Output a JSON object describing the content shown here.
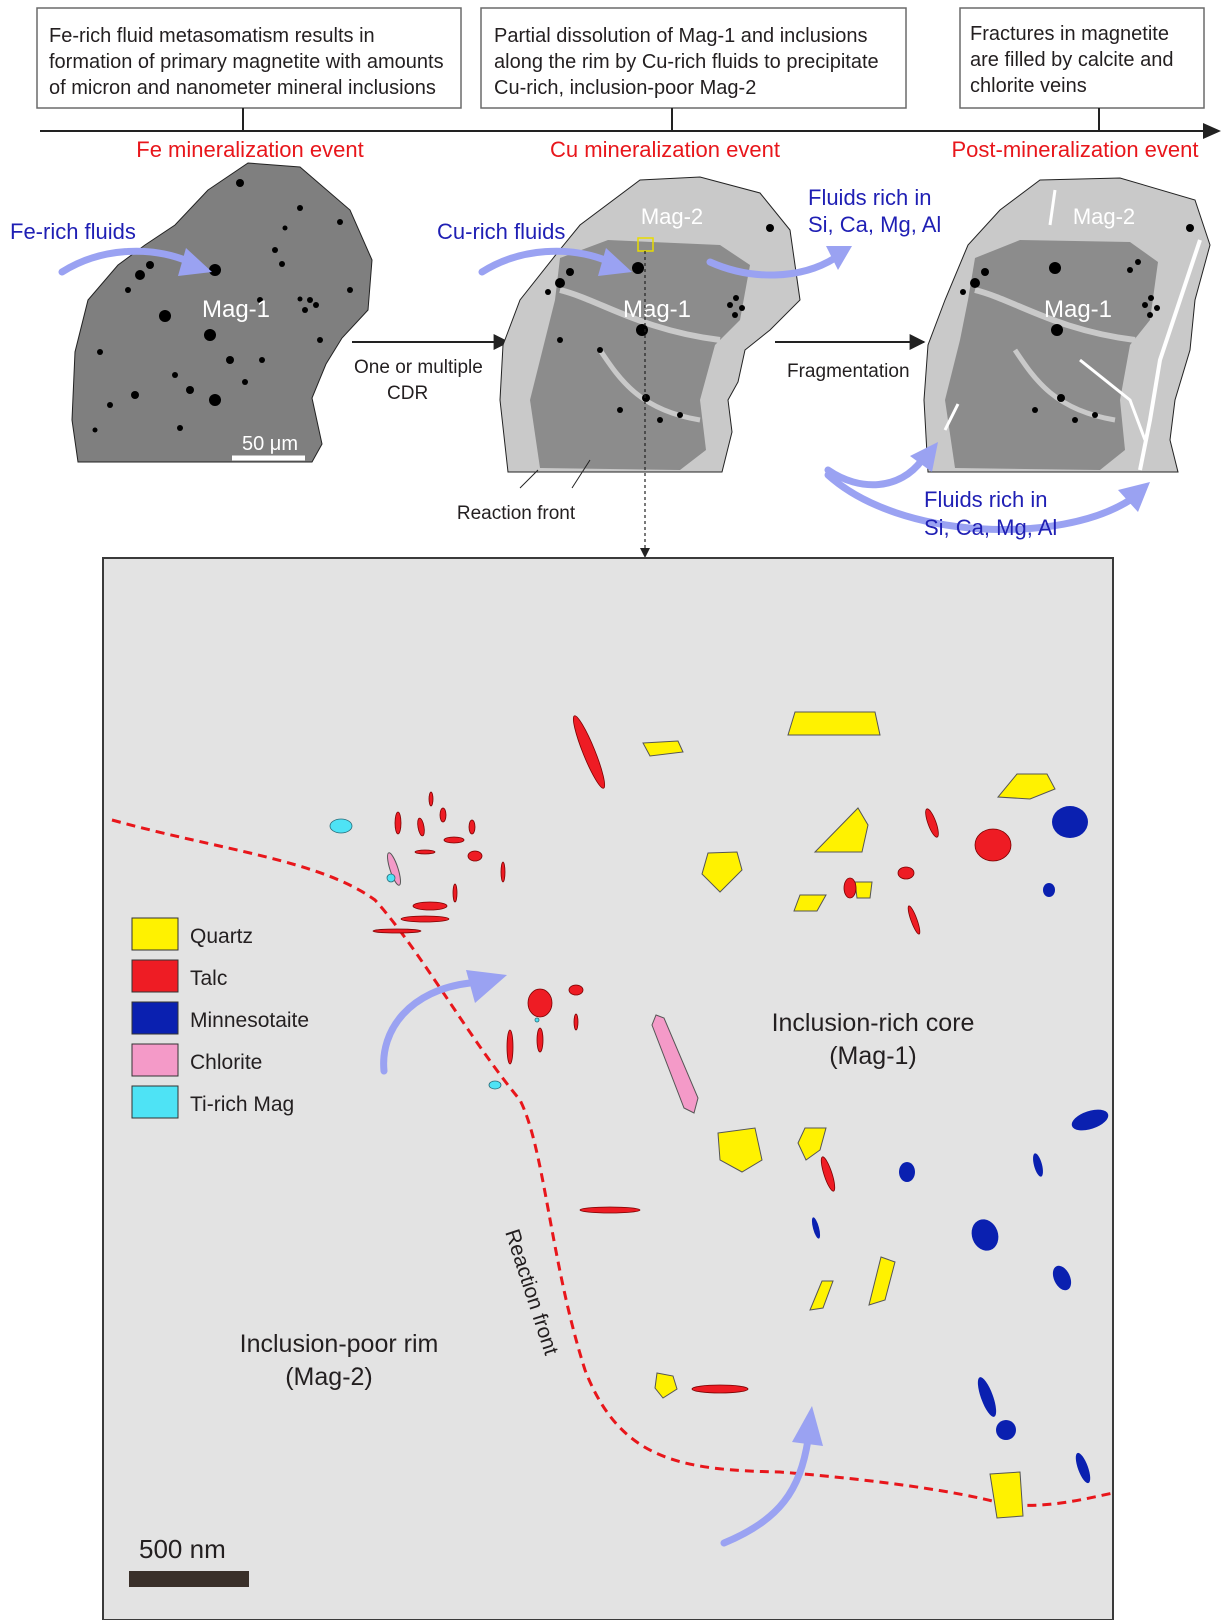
{
  "top_boxes": [
    {
      "lines": [
        "Fe-rich fluid metasomatism results in",
        "formation of primary magnetite with amounts",
        "of micron and nanometer mineral inclusions"
      ]
    },
    {
      "lines": [
        "Partial dissolution of Mag-1 and inclusions",
        "along the rim by Cu-rich fluids to precipitate",
        "Cu-rich, inclusion-poor Mag-2"
      ]
    },
    {
      "lines": [
        "Fractures in magnetite",
        "are filled by calcite and",
        "chlorite veins"
      ]
    }
  ],
  "events": {
    "fe": "Fe mineralization event",
    "cu": "Cu mineralization event",
    "post": "Post-mineralization event"
  },
  "stage1": {
    "fluid_label": "Fe-rich fluids",
    "mineral_label": "Mag-1",
    "scale_label": "50 μm"
  },
  "stage2": {
    "fluid_label": "Cu-rich fluids",
    "rim_label": "Mag-2",
    "core_label": "Mag-1",
    "out_fluid_line1": "Fluids rich in",
    "out_fluid_line2": "Si, Ca, Mg, Al",
    "reaction_label": "Reaction front"
  },
  "stage3": {
    "rim_label": "Mag-2",
    "core_label": "Mag-1",
    "fluid_line1": "Fluids rich in",
    "fluid_line2": "Si, Ca, Mg, Al"
  },
  "transitions": {
    "t1_line1": "One or multiple",
    "t1_line2": "CDR",
    "t2": "Fragmentation"
  },
  "detail": {
    "core_line1": "Inclusion-rich core",
    "core_line2": "(Mag-1)",
    "rim_line1": "Inclusion-poor rim",
    "rim_line2": "(Mag-2)",
    "front_label": "Reaction front",
    "scale_label": "500 nm"
  },
  "legend": [
    {
      "label": "Quartz",
      "color": "#fff200"
    },
    {
      "label": "Talc",
      "color": "#ee1c24"
    },
    {
      "label": "Minnesotaite",
      "color": "#0a20b0"
    },
    {
      "label": "Chlorite",
      "color": "#f49ac8"
    },
    {
      "label": "Ti-rich Mag",
      "color": "#4ee3f5"
    }
  ]
}
